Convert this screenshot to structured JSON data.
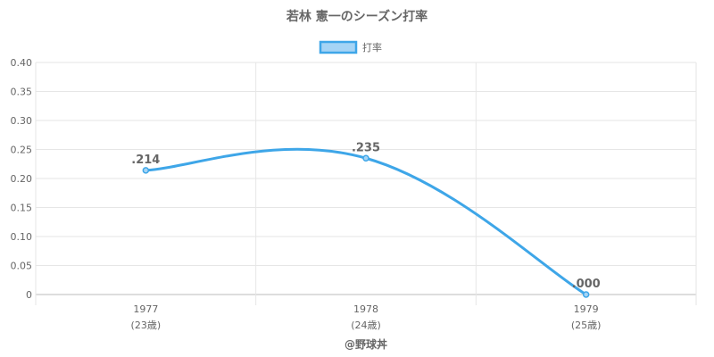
{
  "chart_data": {
    "type": "line",
    "title": "若林 憲一のシーズン打率",
    "legend": {
      "label": "打率",
      "placement": "top-center"
    },
    "categories": [
      {
        "year": "1977",
        "age": "(23歳)"
      },
      {
        "year": "1978",
        "age": "(24歳)"
      },
      {
        "year": "1979",
        "age": "(25歳)"
      }
    ],
    "series": [
      {
        "name": "打率",
        "values": [
          0.214,
          0.235,
          0.0
        ],
        "labels": [
          ".214",
          ".235",
          ".000"
        ]
      }
    ],
    "y_ticks": [
      "0",
      "0.05",
      "0.10",
      "0.15",
      "0.20",
      "0.25",
      "0.30",
      "0.35",
      "0.40"
    ],
    "ylim": [
      0,
      0.4
    ],
    "grid": true,
    "line_color": "#3ea6e8",
    "fill_color": "#a5d4f5",
    "footer": "@野球丼"
  }
}
